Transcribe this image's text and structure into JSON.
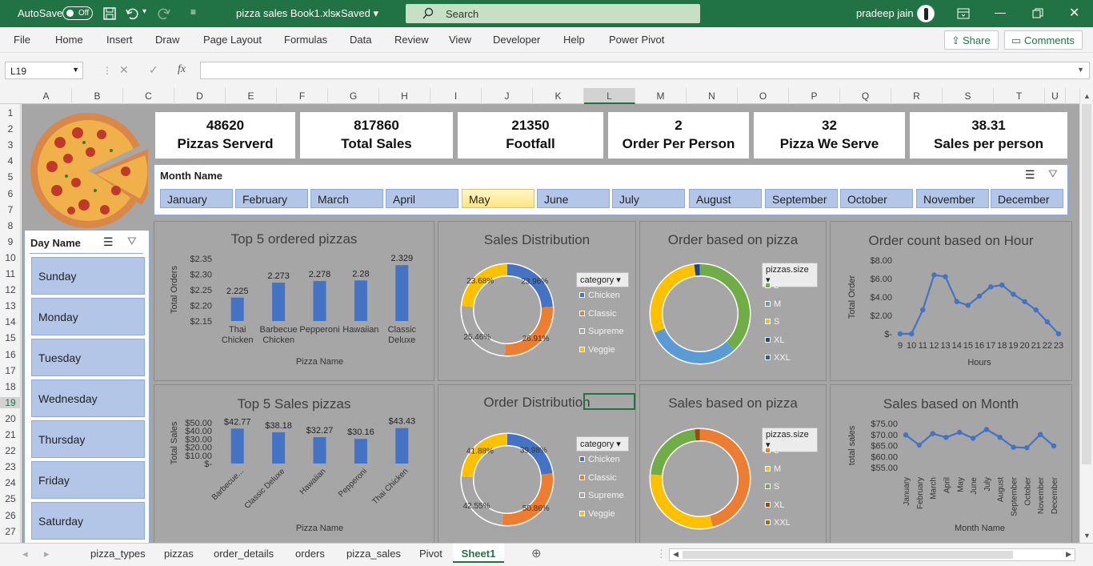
{
  "titlebar": {
    "autosave": "AutoSave",
    "toggle": "Off",
    "filename": "pizza sales Book1.xlsx",
    "saved": "Saved",
    "search": "Search",
    "user": "pradeep jain"
  },
  "ribbon": {
    "tabs": [
      "File",
      "Home",
      "Insert",
      "Draw",
      "Page Layout",
      "Formulas",
      "Data",
      "Review",
      "View",
      "Developer",
      "Help",
      "Power Pivot"
    ],
    "share": "Share",
    "comments": "Comments"
  },
  "formula": {
    "namebox": "L19",
    "fx": "fx",
    "content": ""
  },
  "columns": [
    "A",
    "B",
    "C",
    "D",
    "E",
    "F",
    "G",
    "H",
    "I",
    "J",
    "K",
    "L",
    "M",
    "N",
    "O",
    "P",
    "Q",
    "R",
    "S",
    "T",
    "U"
  ],
  "rows": [
    "1",
    "2",
    "3",
    "4",
    "5",
    "6",
    "7",
    "8",
    "9",
    "10",
    "11",
    "12",
    "13",
    "14",
    "15",
    "16",
    "17",
    "18",
    "19",
    "20",
    "21",
    "22",
    "23",
    "24",
    "25",
    "26",
    "27"
  ],
  "kpis": [
    {
      "value": "48620",
      "label": "Pizzas Serverd"
    },
    {
      "value": "817860",
      "label": "Total Sales"
    },
    {
      "value": "21350",
      "label": "Footfall"
    },
    {
      "value": "2",
      "label": "Order Per Person"
    },
    {
      "value": "32",
      "label": "Pizza We Serve"
    },
    {
      "value": "38.31",
      "label": "Sales per person"
    }
  ],
  "month_slicer": {
    "header": "Month Name",
    "items": [
      "January",
      "February",
      "March",
      "April",
      "May",
      "June",
      "July",
      "August",
      "September",
      "October",
      "November",
      "December"
    ],
    "selected": "May"
  },
  "day_slicer": {
    "header": "Day Name",
    "items": [
      "Sunday",
      "Monday",
      "Tuesday",
      "Wednesday",
      "Thursday",
      "Friday",
      "Saturday"
    ]
  },
  "charts": {
    "top5_ordered": {
      "title": "Top 5 ordered pizzas",
      "ylabel": "Total Orders",
      "xlabel": "Pizza Name"
    },
    "sales_dist": {
      "title": "Sales Distribution",
      "legend_title": "category",
      "legend": [
        "Chicken",
        "Classic",
        "Supreme",
        "Veggie"
      ]
    },
    "order_pizza": {
      "title": "Order based on pizza",
      "legend_title": "pizzas.size",
      "legend": [
        "L",
        "M",
        "S",
        "XL",
        "XXL"
      ]
    },
    "order_hour": {
      "title": "Order count based on Hour",
      "ylabel": "Total Order",
      "xlabel": "Hours"
    },
    "top5_sales": {
      "title": "Top 5 Sales pizzas",
      "ylabel": "Total Sales",
      "xlabel": "Pizza Name"
    },
    "order_dist": {
      "title": "Order Distribution",
      "legend_title": "category",
      "legend": [
        "Chicken",
        "Classic",
        "Supreme",
        "Veggie"
      ]
    },
    "sales_pizza": {
      "title": "Sales based on pizza",
      "legend_title": "pizzas.size",
      "legend": [
        "L",
        "M",
        "S",
        "XL",
        "XXL"
      ]
    },
    "sales_month": {
      "title": "Sales based on Month",
      "ylabel": "total sales",
      "xlabel": "Month Name"
    }
  },
  "chart_data": [
    {
      "type": "bar",
      "title": "Top 5 ordered pizzas",
      "xlabel": "Pizza Name",
      "ylabel": "Total Orders",
      "categories": [
        "Thai Chicken",
        "Barbecue Chicken",
        "Pepperoni",
        "Hawaiian",
        "Classic Deluxe"
      ],
      "values": [
        2.225,
        2.273,
        2.278,
        2.28,
        2.329
      ],
      "ylim": [
        2.15,
        2.35
      ],
      "yticks": [
        "$2.15",
        "$2.20",
        "$2.25",
        "$2.30",
        "$2.35"
      ]
    },
    {
      "type": "pie",
      "title": "Sales Distribution",
      "categories": [
        "Chicken",
        "Classic",
        "Supreme",
        "Veggie"
      ],
      "values": [
        23.96,
        26.91,
        25.46,
        23.68
      ]
    },
    {
      "type": "pie",
      "title": "Order based on pizza",
      "categories": [
        "L",
        "M",
        "S",
        "XL",
        "XXL"
      ],
      "values": [
        38.0,
        30.8,
        29.3,
        1.7,
        0.2
      ]
    },
    {
      "type": "line",
      "title": "Order count based on Hour",
      "xlabel": "Hours",
      "ylabel": "Total Order",
      "x": [
        "9",
        "10",
        "11",
        "12",
        "13",
        "14",
        "15",
        "16",
        "17",
        "18",
        "19",
        "20",
        "21",
        "22",
        "23"
      ],
      "values": [
        0.0,
        0.0,
        2.6,
        6.4,
        6.2,
        3.5,
        3.1,
        4.1,
        5.1,
        5.3,
        4.3,
        3.5,
        2.6,
        1.3,
        0.0
      ],
      "ylim": [
        0,
        8
      ],
      "yticks": [
        "$-",
        "$2.00",
        "$4.00",
        "$6.00",
        "$8.00"
      ]
    },
    {
      "type": "bar",
      "title": "Top 5 Sales pizzas",
      "xlabel": "Pizza Name",
      "ylabel": "Total Sales",
      "categories": [
        "Barbecue...",
        "Classic Deluxe",
        "Hawaiian",
        "Pepperoni",
        "Thai Chicken"
      ],
      "values": [
        42.77,
        38.18,
        32.27,
        30.16,
        43.43
      ],
      "ylim": [
        0,
        50
      ],
      "yticks": [
        "$-",
        "$10.00",
        "$20.00",
        "$30.00",
        "$40.00",
        "$50.00"
      ]
    },
    {
      "type": "pie",
      "title": "Order Distribution",
      "categories": [
        "Chicken",
        "Classic",
        "Supreme",
        "Veggie"
      ],
      "values": [
        39.98,
        50.86,
        42.55,
        41.88
      ]
    },
    {
      "type": "pie",
      "title": "Sales based on pizza",
      "categories": [
        "L",
        "M",
        "S",
        "XL",
        "XXL"
      ],
      "values": [
        45.9,
        30.5,
        21.8,
        1.7,
        0.1
      ]
    },
    {
      "type": "line",
      "title": "Sales based on Month",
      "xlabel": "Month Name",
      "ylabel": "total sales",
      "x": [
        "January",
        "February",
        "March",
        "April",
        "May",
        "June",
        "July",
        "August",
        "September",
        "October",
        "November",
        "December"
      ],
      "values": [
        69.8,
        65.2,
        70.4,
        68.7,
        71.0,
        68.3,
        72.3,
        68.7,
        64.2,
        64.0,
        70.0,
        64.8
      ],
      "ylim": [
        55,
        75
      ],
      "yticks": [
        "$55.00",
        "$60.00",
        "$65.00",
        "$70.00",
        "$75.00"
      ]
    }
  ],
  "colors": {
    "blue": "#4472c4",
    "orange": "#ed7d31",
    "gray": "#a5a5a5",
    "yellow": "#ffc000",
    "green": "#70ad47",
    "brown": "#9e480e",
    "darkblue": "#255e91"
  },
  "sheet_tabs": [
    "pizza_types",
    "pizzas",
    "order_details",
    "orders",
    "pizza_sales",
    "Pivot",
    "Sheet1"
  ],
  "active_tab": "Sheet1"
}
